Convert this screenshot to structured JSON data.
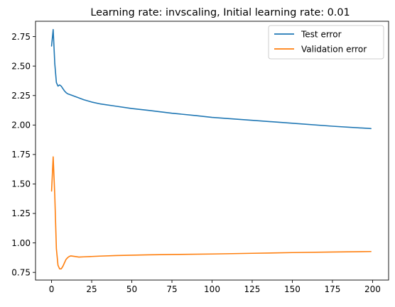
{
  "chart_data": {
    "type": "line",
    "title": "Learning rate: invscaling, Initial learning rate: 0.01",
    "xlabel": "",
    "ylabel": "",
    "xlim": [
      -10,
      210
    ],
    "ylim": [
      0.685,
      2.88
    ],
    "xticks": [
      0,
      25,
      50,
      75,
      100,
      125,
      150,
      175,
      200
    ],
    "yticks": [
      0.75,
      1.0,
      1.25,
      1.5,
      1.75,
      2.0,
      2.25,
      2.5,
      2.75
    ],
    "xtick_labels": [
      "0",
      "25",
      "50",
      "75",
      "100",
      "125",
      "150",
      "175",
      "200"
    ],
    "ytick_labels": [
      "0.75",
      "1.00",
      "1.25",
      "1.50",
      "1.75",
      "2.00",
      "2.25",
      "2.50",
      "2.75"
    ],
    "grid": false,
    "legend_position": "top-right",
    "series": [
      {
        "name": "Test error",
        "color": "#1f77b4",
        "x": [
          0,
          1,
          2,
          3,
          4,
          5,
          6,
          7,
          8,
          9,
          10,
          12,
          15,
          20,
          25,
          30,
          40,
          50,
          60,
          75,
          90,
          100,
          125,
          150,
          175,
          199
        ],
        "y": [
          2.67,
          2.81,
          2.52,
          2.36,
          2.33,
          2.34,
          2.33,
          2.31,
          2.29,
          2.275,
          2.265,
          2.255,
          2.24,
          2.215,
          2.195,
          2.18,
          2.16,
          2.14,
          2.125,
          2.1,
          2.08,
          2.065,
          2.04,
          2.015,
          1.99,
          1.97
        ]
      },
      {
        "name": "Validation error",
        "color": "#ff7f0e",
        "x": [
          0,
          1,
          2,
          3,
          4,
          5,
          6,
          7,
          8,
          9,
          10,
          11,
          12,
          14,
          17,
          20,
          25,
          30,
          40,
          50,
          60,
          75,
          100,
          125,
          150,
          175,
          199
        ],
        "y": [
          1.44,
          1.73,
          1.4,
          0.95,
          0.81,
          0.78,
          0.78,
          0.8,
          0.83,
          0.86,
          0.875,
          0.885,
          0.89,
          0.886,
          0.88,
          0.882,
          0.885,
          0.888,
          0.893,
          0.896,
          0.899,
          0.902,
          0.906,
          0.912,
          0.918,
          0.923,
          0.927
        ]
      }
    ]
  }
}
